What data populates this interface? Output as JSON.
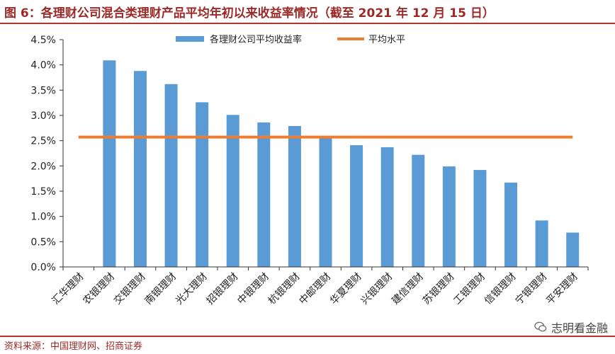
{
  "figure": {
    "title": "图 6：各理财公司混合类理财产品平均年初以来收益率情况（截至 2021 年 12 月 15 日）",
    "source": "资料来源：中国理财网、招商证券",
    "watermark": "志明看金融"
  },
  "colors": {
    "bar": "#5b9bd5",
    "avg_line": "#ed7d31",
    "title": "#9b2a27",
    "rule": "#b3322f"
  },
  "chart_data": {
    "type": "bar",
    "title": "",
    "xlabel": "",
    "ylabel": "",
    "categories": [
      "汇华理财",
      "农银理财",
      "交银理财",
      "南银理财",
      "光大理财",
      "招银理财",
      "中银理财",
      "杭银理财",
      "中邮理财",
      "华夏理财",
      "兴银理财",
      "建信理财",
      "苏银理财",
      "工银理财",
      "信银理财",
      "宁银理财",
      "平安理财"
    ],
    "series": [
      {
        "name": "各理财公司平均收益率",
        "type": "bar",
        "values": [
          null,
          4.09,
          3.88,
          3.62,
          3.26,
          3.01,
          2.86,
          2.79,
          2.55,
          2.41,
          2.37,
          2.22,
          1.99,
          1.92,
          1.67,
          0.92,
          0.68
        ]
      },
      {
        "name": "平均水平",
        "type": "line",
        "value": 2.57
      }
    ],
    "ylim": [
      0,
      4.5
    ],
    "yticks": [
      "0.0%",
      "0.5%",
      "1.0%",
      "1.5%",
      "2.0%",
      "2.5%",
      "3.0%",
      "3.5%",
      "4.0%",
      "4.5%"
    ],
    "ytick_values": [
      0,
      0.5,
      1.0,
      1.5,
      2.0,
      2.5,
      3.0,
      3.5,
      4.0,
      4.5
    ],
    "legend_position": "top-center",
    "grid": false
  }
}
